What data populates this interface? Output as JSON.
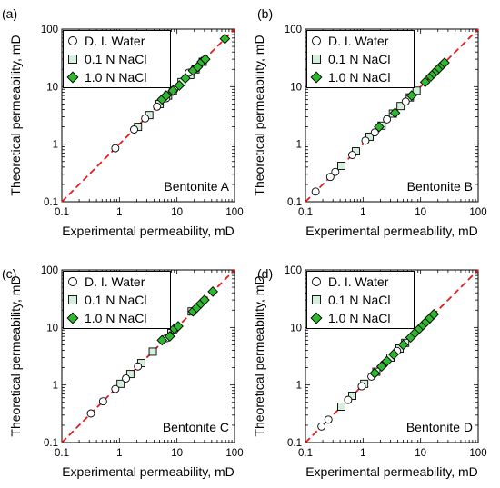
{
  "chart_data": [
    {
      "type": "scatter",
      "panel_label": "(a)",
      "annotation": "Bentonite A",
      "xlabel": "Experimental permeability, mD",
      "ylabel": "Theoretical permeability, mD",
      "xscale": "log",
      "yscale": "log",
      "xlim": [
        0.1,
        100
      ],
      "ylim": [
        0.1,
        100
      ],
      "xticks": [
        "0.1",
        "1",
        "10",
        "100"
      ],
      "yticks": [
        "0.1",
        "1",
        "10",
        "100"
      ],
      "legend_position": "top-left",
      "reference_line": "1:1",
      "series": [
        {
          "name": "D. I. Water",
          "marker": "circle",
          "color": "#ffffff",
          "x": [
            0.85,
            1.8,
            2.8,
            4.5,
            6.5,
            9.0,
            16.0,
            20.0,
            22.0
          ],
          "y": [
            0.85,
            1.8,
            2.8,
            4.5,
            6.3,
            9.0,
            17.5,
            20.0,
            21.0
          ]
        },
        {
          "name": "0.1 N NaCl",
          "marker": "square",
          "color": "#d4f0dc",
          "x": [
            2.1,
            3.3,
            5.0,
            7.0,
            8.5,
            12.0,
            17.0,
            21.0,
            28.0
          ],
          "y": [
            2.0,
            3.2,
            5.0,
            7.0,
            8.5,
            12.0,
            16.0,
            20.0,
            27.0
          ]
        },
        {
          "name": "1.0 N NaCl",
          "marker": "diamond",
          "color": "#2db82d",
          "x": [
            5.5,
            6.5,
            8.5,
            11.0,
            14.0,
            19.0,
            23.0,
            27.0,
            31.0,
            68.0
          ],
          "y": [
            6.0,
            7.0,
            8.5,
            10.5,
            14.0,
            19.0,
            22.0,
            27.0,
            30.0,
            68.0
          ]
        }
      ]
    },
    {
      "type": "scatter",
      "panel_label": "(b)",
      "annotation": "Bentonite B",
      "xlabel": "Experimental permeability, mD",
      "ylabel": "Theoretical permeability, mD",
      "xscale": "log",
      "yscale": "log",
      "xlim": [
        0.1,
        100
      ],
      "ylim": [
        0.1,
        100
      ],
      "xticks": [
        "0.1",
        "1",
        "10",
        "100"
      ],
      "yticks": [
        "0.1",
        "1",
        "10",
        "100"
      ],
      "legend_position": "top-left",
      "reference_line": "1:1",
      "series": [
        {
          "name": "D. I. Water",
          "marker": "circle",
          "color": "#ffffff",
          "x": [
            0.15,
            0.27,
            0.33,
            0.65,
            1.1,
            1.6,
            2.6,
            5.5
          ],
          "y": [
            0.15,
            0.27,
            0.33,
            0.65,
            1.15,
            1.6,
            2.7,
            5.5
          ]
        },
        {
          "name": "0.1 N NaCl",
          "marker": "square",
          "color": "#d4f0dc",
          "x": [
            0.42,
            0.75,
            1.3,
            2.1,
            3.3,
            4.5,
            6.5,
            8.5
          ],
          "y": [
            0.42,
            0.75,
            1.35,
            2.1,
            3.4,
            4.6,
            6.5,
            8.5
          ]
        },
        {
          "name": "1.0 N NaCl",
          "marker": "diamond",
          "color": "#2db82d",
          "x": [
            1.9,
            3.6,
            7.0,
            12.0,
            15.0,
            17.0,
            19.0,
            21.0,
            24.0,
            26.0
          ],
          "y": [
            2.0,
            3.5,
            7.0,
            12.0,
            15.0,
            17.0,
            19.0,
            21.0,
            24.0,
            26.0
          ]
        }
      ]
    },
    {
      "type": "scatter",
      "panel_label": "(c)",
      "annotation": "Bentonite C",
      "xlabel": "Experimental permeability, mD",
      "ylabel": "Theoretical permeability, mD",
      "xscale": "log",
      "yscale": "log",
      "xlim": [
        0.1,
        100
      ],
      "ylim": [
        0.1,
        100
      ],
      "xticks": [
        "0.1",
        "1",
        "10",
        "100"
      ],
      "yticks": [
        "0.1",
        "1",
        "10",
        "100"
      ],
      "legend_position": "top-left",
      "reference_line": "1:1",
      "series": [
        {
          "name": "D. I. Water",
          "marker": "circle",
          "color": "#ffffff",
          "x": [
            0.32,
            0.52,
            0.85,
            1.3,
            2.1,
            6.5,
            9.0
          ],
          "y": [
            0.32,
            0.52,
            0.85,
            1.3,
            2.1,
            6.5,
            9.0
          ]
        },
        {
          "name": "0.1 N NaCl",
          "marker": "square",
          "color": "#d4f0dc",
          "x": [
            1.05,
            1.55,
            2.4,
            3.8,
            8.0,
            18.0
          ],
          "y": [
            1.05,
            1.55,
            2.4,
            3.8,
            8.0,
            19.0
          ]
        },
        {
          "name": "1.0 N NaCl",
          "marker": "diamond",
          "color": "#2db82d",
          "x": [
            5.5,
            7.5,
            9.0,
            10.5,
            19.0,
            22.0,
            26.0,
            30.0,
            42.0
          ],
          "y": [
            6.0,
            7.0,
            9.5,
            10.5,
            19.0,
            22.0,
            26.0,
            30.0,
            42.0
          ]
        }
      ]
    },
    {
      "type": "scatter",
      "panel_label": "(d)",
      "annotation": "Bentonite D",
      "xlabel": "Experimental permeability, mD",
      "ylabel": "Theoretical permeability, mD",
      "xscale": "log",
      "yscale": "log",
      "xlim": [
        0.1,
        100
      ],
      "ylim": [
        0.1,
        100
      ],
      "xticks": [
        "0.1",
        "1",
        "10",
        "100"
      ],
      "yticks": [
        "0.1",
        "1",
        "10",
        "100"
      ],
      "legend_position": "top-left",
      "reference_line": "1:1",
      "series": [
        {
          "name": "D. I. Water",
          "marker": "circle",
          "color": "#ffffff",
          "x": [
            0.19,
            0.25,
            0.55,
            0.95,
            1.4,
            2.3,
            3.9
          ],
          "y": [
            0.19,
            0.25,
            0.55,
            0.95,
            1.4,
            2.3,
            3.9
          ]
        },
        {
          "name": "0.1 N NaCl",
          "marker": "square",
          "color": "#d4f0dc",
          "x": [
            0.42,
            0.65,
            1.05,
            1.7,
            3.0,
            4.3,
            5.4
          ],
          "y": [
            0.42,
            0.65,
            1.05,
            1.7,
            3.0,
            4.3,
            5.4
          ]
        },
        {
          "name": "1.0 N NaCl",
          "marker": "diamond",
          "color": "#2db82d",
          "x": [
            1.6,
            2.1,
            2.6,
            3.4,
            5.0,
            6.7,
            8.0,
            9.5,
            11.0,
            12.5,
            14.5,
            17.0
          ],
          "y": [
            1.6,
            2.1,
            2.6,
            3.4,
            5.0,
            6.7,
            8.0,
            9.5,
            11.0,
            12.5,
            14.5,
            17.0
          ]
        }
      ]
    }
  ]
}
